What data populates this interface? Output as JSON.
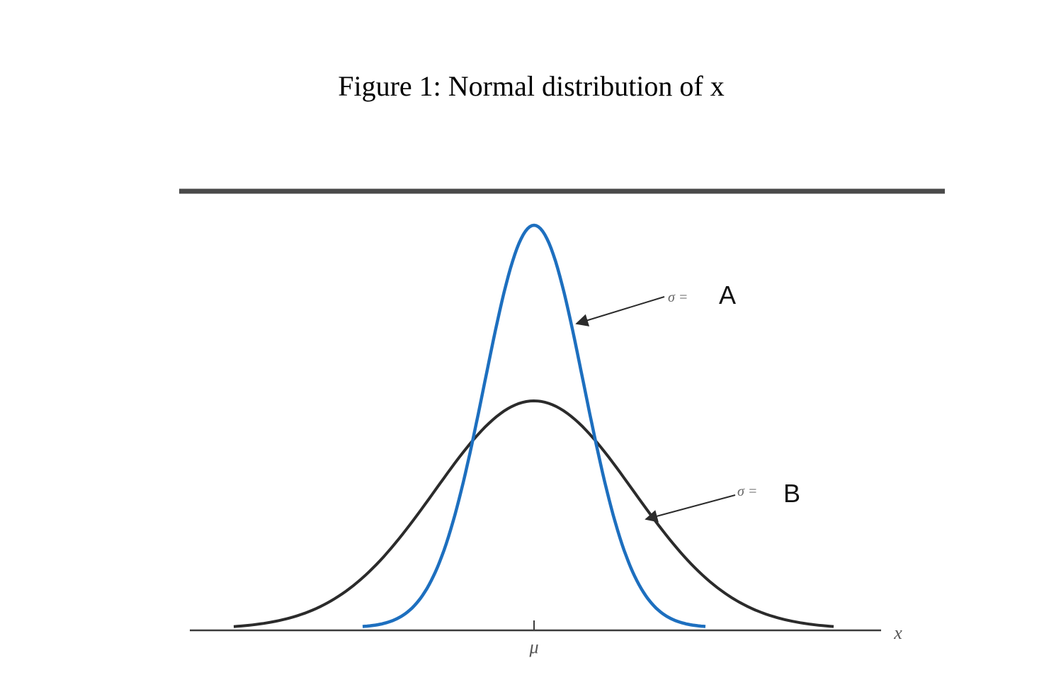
{
  "figure": {
    "title": "Figure 1: Normal distribution of x"
  },
  "axis": {
    "x_variable": "x",
    "mean_symbol": "μ"
  },
  "curves": [
    {
      "id": "narrow",
      "sigma_prefix": "σ =",
      "sigma_label": "A",
      "color": "#1d6fbf"
    },
    {
      "id": "wide",
      "sigma_prefix": "σ =",
      "sigma_label": "B",
      "color": "#2b2b2b"
    }
  ],
  "colors": {
    "rule": "#4a4a4a",
    "axis": "#3c3c3c",
    "arrow": "#2b2b2b"
  }
}
